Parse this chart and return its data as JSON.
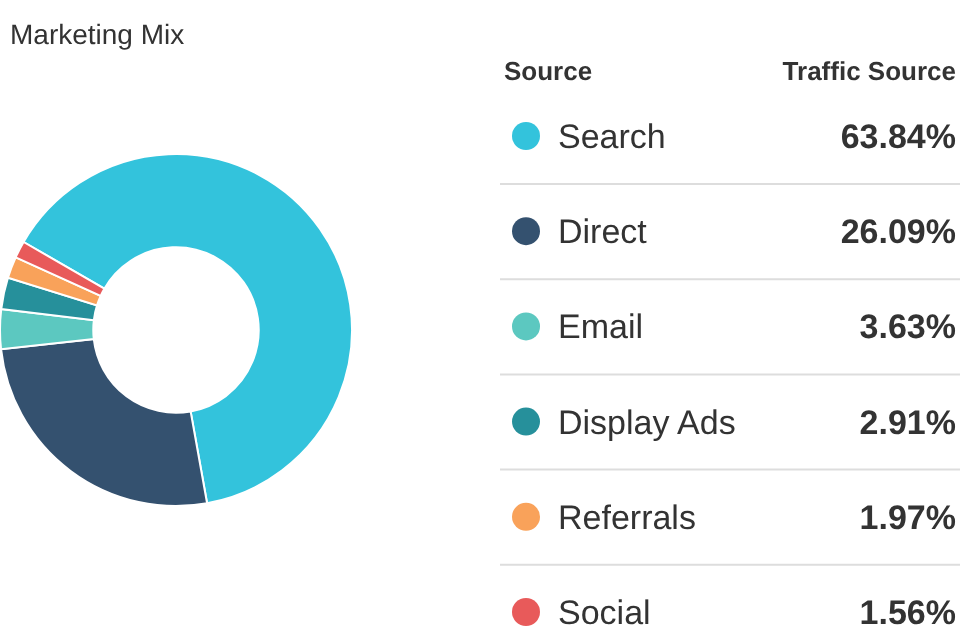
{
  "chart_data": {
    "type": "donut",
    "title": "Marketing Mix",
    "legend_title": "Source",
    "annotations": [
      "Traffic Source"
    ],
    "categories": [
      "Search",
      "Direct",
      "Email",
      "Display Ads",
      "Referrals",
      "Social"
    ],
    "values": [
      63.84,
      26.09,
      3.63,
      2.91,
      1.97,
      1.56
    ],
    "value_labels": [
      "63.84%",
      "26.09%",
      "3.63%",
      "2.91%",
      "1.97%",
      "1.56%"
    ],
    "colors": [
      "#33c3dc",
      "#34516f",
      "#5cc8c0",
      "#26909b",
      "#f9a25a",
      "#e85a5a"
    ],
    "legend": "right"
  }
}
